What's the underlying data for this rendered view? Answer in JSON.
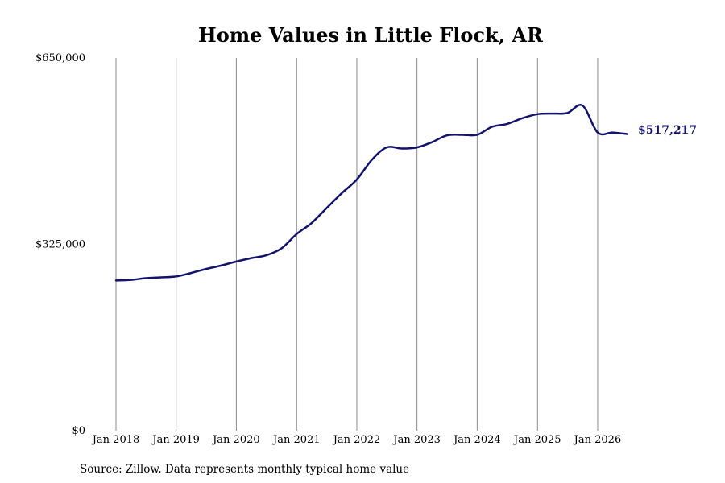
{
  "chart_data": {
    "type": "line",
    "title": "Home Values in Little Flock, AR",
    "xlabel": "",
    "ylabel": "",
    "source": "Source: Zillow. Data represents monthly typical home value",
    "ylim": [
      0,
      650000
    ],
    "yticks": [
      {
        "value": 0,
        "label": "$0"
      },
      {
        "value": 325000,
        "label": "$325,000"
      },
      {
        "value": 650000,
        "label": "$650,000"
      }
    ],
    "xlim": [
      "2018-01-01",
      "2026-07-01"
    ],
    "xticks": [
      {
        "date": "2018-01-01",
        "label": "Jan 2018"
      },
      {
        "date": "2019-01-01",
        "label": "Jan 2019"
      },
      {
        "date": "2020-01-01",
        "label": "Jan 2020"
      },
      {
        "date": "2021-01-01",
        "label": "Jan 2021"
      },
      {
        "date": "2022-01-01",
        "label": "Jan 2022"
      },
      {
        "date": "2023-01-01",
        "label": "Jan 2023"
      },
      {
        "date": "2024-01-01",
        "label": "Jan 2024"
      },
      {
        "date": "2025-01-01",
        "label": "Jan 2025"
      },
      {
        "date": "2026-01-01",
        "label": "Jan 2026"
      }
    ],
    "grid": "vertical",
    "line_color": "#13136b",
    "end_label": "$517,217",
    "series": [
      {
        "x": [
          "2018-01-01",
          "2018-04-01",
          "2018-07-01",
          "2018-10-01",
          "2019-01-01",
          "2019-04-01",
          "2019-07-01",
          "2019-10-01",
          "2020-01-01",
          "2020-04-01",
          "2020-07-01",
          "2020-10-01",
          "2021-01-01",
          "2021-04-01",
          "2021-07-01",
          "2021-10-01",
          "2022-01-01",
          "2022-04-01",
          "2022-07-01",
          "2022-10-01",
          "2023-01-01",
          "2023-04-01",
          "2023-07-01",
          "2023-10-01",
          "2024-01-01",
          "2024-04-01",
          "2024-07-01",
          "2024-10-01",
          "2025-01-01",
          "2025-04-01",
          "2025-07-01",
          "2025-10-01",
          "2026-01-01",
          "2026-04-01",
          "2026-07-01"
        ],
        "values": [
          262000,
          263000,
          266000,
          267500,
          269000,
          275000,
          282000,
          288000,
          295000,
          301000,
          306000,
          318000,
          343000,
          362000,
          388000,
          414000,
          438000,
          472000,
          494000,
          492000,
          494000,
          503000,
          515000,
          516000,
          516000,
          530000,
          535000,
          545000,
          552000,
          553000,
          554000,
          567000,
          520000,
          520000,
          517217
        ]
      }
    ]
  }
}
